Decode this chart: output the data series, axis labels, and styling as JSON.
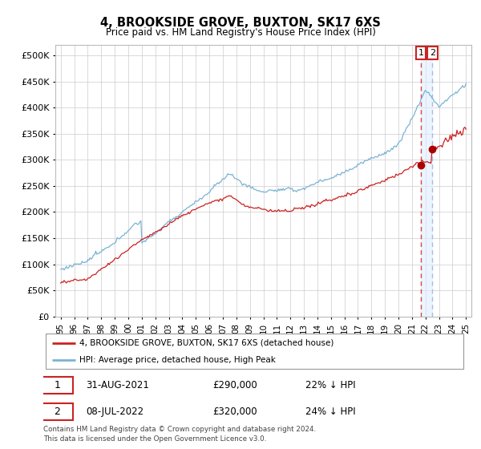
{
  "title": "4, BROOKSIDE GROVE, BUXTON, SK17 6XS",
  "subtitle": "Price paid vs. HM Land Registry's House Price Index (HPI)",
  "legend_line1": "4, BROOKSIDE GROVE, BUXTON, SK17 6XS (detached house)",
  "legend_line2": "HPI: Average price, detached house, High Peak",
  "annotation1_date": "31-AUG-2021",
  "annotation1_price": "£290,000",
  "annotation1_hpi": "22% ↓ HPI",
  "annotation2_date": "08-JUL-2022",
  "annotation2_price": "£320,000",
  "annotation2_hpi": "24% ↓ HPI",
  "footer": "Contains HM Land Registry data © Crown copyright and database right 2024.\nThis data is licensed under the Open Government Licence v3.0.",
  "hpi_color": "#7ab3d4",
  "price_color": "#cc2222",
  "marker_color": "#aa0000",
  "vline1_color": "#dd4444",
  "vline2_color": "#aabbdd",
  "shade_color": "#ddeeff",
  "box1_color": "#cc2222",
  "box2_color": "#cc2222",
  "ylim": [
    0,
    520000
  ],
  "yticks": [
    0,
    50000,
    100000,
    150000,
    200000,
    250000,
    300000,
    350000,
    400000,
    450000,
    500000
  ],
  "start_year": 1995,
  "end_year": 2025,
  "sale1_year": 2021.67,
  "sale2_year": 2022.52,
  "sale1_value": 290000,
  "sale2_value": 320000
}
